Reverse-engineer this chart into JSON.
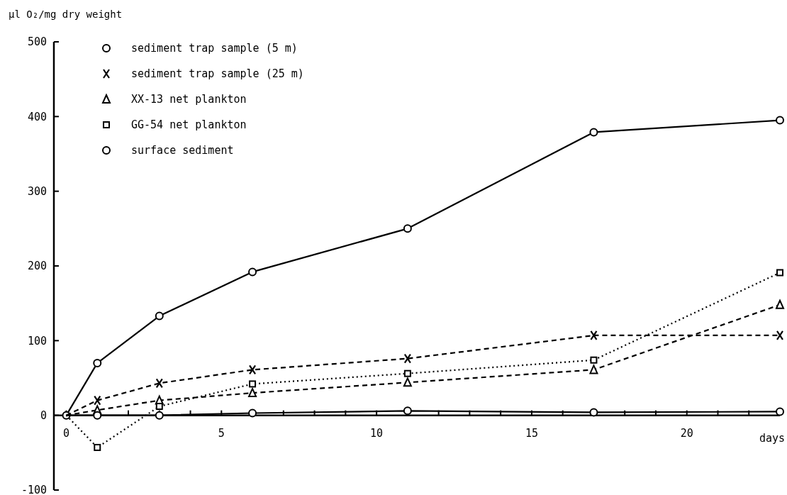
{
  "chart_data": {
    "type": "line",
    "ylabel": "µl O₂/mg dry weight",
    "xlabel": "days",
    "x": [
      0,
      1,
      3,
      6,
      11,
      17,
      23
    ],
    "xlim": [
      -0.4,
      23
    ],
    "ylim": [
      -100,
      500
    ],
    "xticks": [
      0,
      {
        "value": 1,
        "label": null
      },
      {
        "value": 2,
        "label": null
      },
      {
        "value": 3,
        "label": null
      },
      {
        "value": 4,
        "label": null
      },
      5,
      {
        "value": 6,
        "label": null
      },
      {
        "value": 7,
        "label": null
      },
      {
        "value": 8,
        "label": null
      },
      {
        "value": 9,
        "label": null
      },
      10,
      {
        "value": 11,
        "label": null
      },
      {
        "value": 12,
        "label": null
      },
      {
        "value": 13,
        "label": null
      },
      {
        "value": 14,
        "label": null
      },
      15,
      {
        "value": 16,
        "label": null
      },
      {
        "value": 17,
        "label": null
      },
      {
        "value": 18,
        "label": null
      },
      {
        "value": 19,
        "label": null
      },
      20,
      {
        "value": 21,
        "label": null
      },
      {
        "value": 22,
        "label": null
      }
    ],
    "yticks": [
      -100,
      0,
      100,
      200,
      300,
      400,
      500
    ],
    "grid": false,
    "legend": "top left",
    "series": [
      {
        "name": "sediment trap sample (5 m)",
        "color": "#000000",
        "marker": "circle",
        "line_style": "solid",
        "values": [
          0,
          70,
          133,
          192,
          250,
          379,
          395
        ]
      },
      {
        "name": "sediment trap sample (25 m)",
        "color": "#000000",
        "marker": "cross",
        "line_style": "dashed",
        "values": [
          0,
          20,
          43,
          61,
          76,
          107,
          107
        ]
      },
      {
        "name": "XX-13 net plankton",
        "color": "#000000",
        "marker": "triangle",
        "line_style": "dashed",
        "values": [
          0,
          7,
          20,
          30,
          44,
          61,
          148
        ]
      },
      {
        "name": "GG-54 net plankton",
        "color": "#000000",
        "marker": "square",
        "line_style": "dotted",
        "values": [
          0,
          -43,
          12,
          42,
          56,
          74,
          191
        ]
      },
      {
        "name": "surface sediment",
        "color": "#000000",
        "marker": "circle",
        "line_style": "solid",
        "values": [
          0,
          0,
          0,
          3,
          6,
          4,
          5
        ]
      }
    ]
  }
}
